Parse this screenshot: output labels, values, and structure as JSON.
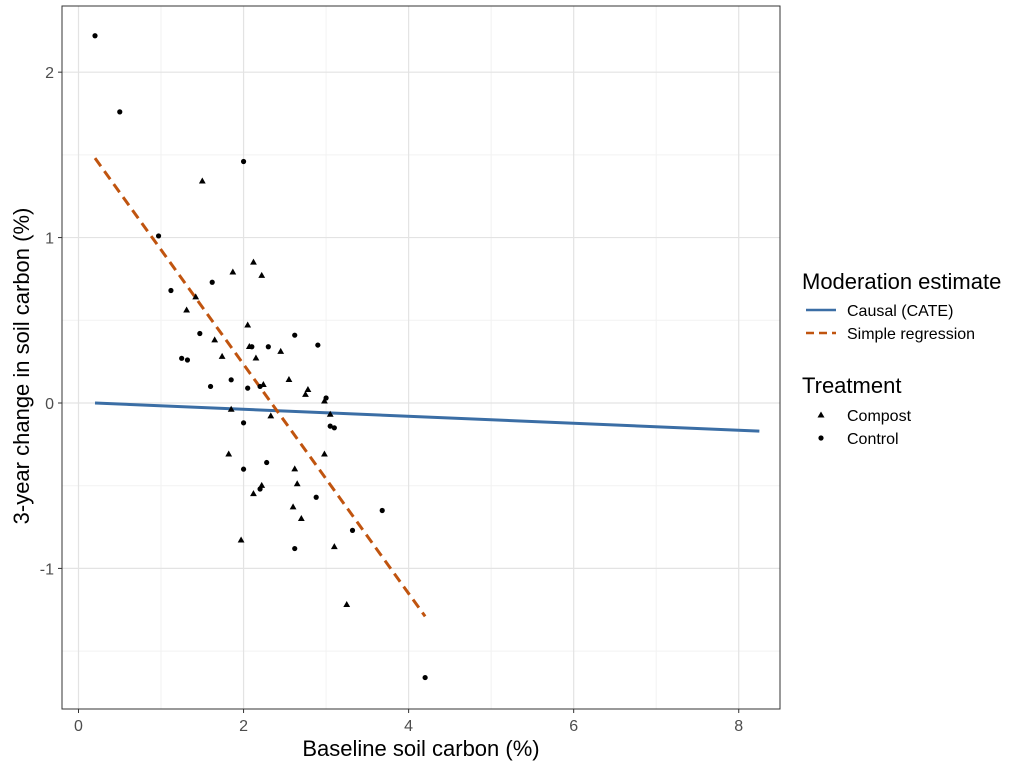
{
  "chart_data": {
    "type": "scatter",
    "title": "",
    "xlabel": "Baseline soil carbon (%)",
    "ylabel": "3-year change in soil carbon (%)",
    "xlim": [
      -0.2,
      8.5
    ],
    "ylim": [
      -1.85,
      2.4
    ],
    "x_ticks": [
      0,
      2,
      4,
      6,
      8
    ],
    "y_ticks": [
      -1,
      0,
      1,
      2
    ],
    "x_minor": [
      1,
      3,
      5,
      7
    ],
    "y_minor": [
      -1.5,
      -0.5,
      0.5,
      1.5
    ],
    "grid": true,
    "legend_position": "right",
    "legends": {
      "lines": {
        "title": "Moderation estimate",
        "entries": [
          {
            "label": "Causal (CATE)",
            "color": "#3b6ea5",
            "dash": "solid"
          },
          {
            "label": "Simple regression",
            "color": "#c0540f",
            "dash": "dashed"
          }
        ]
      },
      "points": {
        "title": "Treatment",
        "entries": [
          {
            "label": "Compost",
            "shape": "triangle"
          },
          {
            "label": "Control",
            "shape": "circle"
          }
        ]
      }
    },
    "lines": [
      {
        "name": "Causal (CATE)",
        "color": "#3b6ea5",
        "dash": "solid",
        "x": [
          0.2,
          8.25
        ],
        "y": [
          0.0,
          -0.17
        ]
      },
      {
        "name": "Simple regression",
        "color": "#c0540f",
        "dash": "dashed",
        "x": [
          0.2,
          4.2
        ],
        "y": [
          1.48,
          -1.29
        ]
      }
    ],
    "series": [
      {
        "name": "Compost",
        "shape": "triangle",
        "x": [
          1.5,
          2.12,
          1.87,
          2.22,
          1.42,
          1.31,
          2.05,
          1.65,
          2.45,
          2.07,
          1.74,
          2.15,
          2.24,
          2.55,
          2.78,
          2.75,
          2.98,
          3.05,
          2.33,
          1.85,
          1.82,
          2.62,
          2.98,
          2.65,
          2.22,
          2.12,
          2.6,
          2.7,
          1.97,
          3.1,
          3.25
        ],
        "y": [
          1.34,
          0.85,
          0.79,
          0.77,
          0.64,
          0.56,
          0.47,
          0.38,
          0.31,
          0.34,
          0.28,
          0.27,
          0.11,
          0.14,
          0.08,
          0.05,
          0.01,
          -0.07,
          -0.08,
          -0.04,
          -0.31,
          -0.4,
          -0.31,
          -0.49,
          -0.5,
          -0.55,
          -0.63,
          -0.7,
          -0.83,
          -0.87,
          -1.22
        ]
      },
      {
        "name": "Control",
        "shape": "circle",
        "x": [
          0.2,
          0.5,
          2.0,
          0.97,
          1.62,
          1.12,
          2.62,
          2.9,
          2.1,
          2.3,
          1.25,
          1.32,
          1.47,
          1.6,
          1.85,
          2.05,
          2.2,
          3.0,
          3.05,
          3.1,
          2.0,
          2.28,
          2.0,
          2.2,
          2.88,
          3.68,
          3.32,
          2.62,
          4.2
        ],
        "y": [
          2.22,
          1.76,
          1.46,
          1.01,
          0.73,
          0.68,
          0.41,
          0.35,
          0.34,
          0.34,
          0.27,
          0.26,
          0.42,
          0.1,
          0.14,
          0.09,
          0.1,
          0.03,
          -0.14,
          -0.15,
          -0.12,
          -0.36,
          -0.4,
          -0.52,
          -0.57,
          -0.65,
          -0.77,
          -0.88,
          -1.66
        ]
      }
    ]
  }
}
